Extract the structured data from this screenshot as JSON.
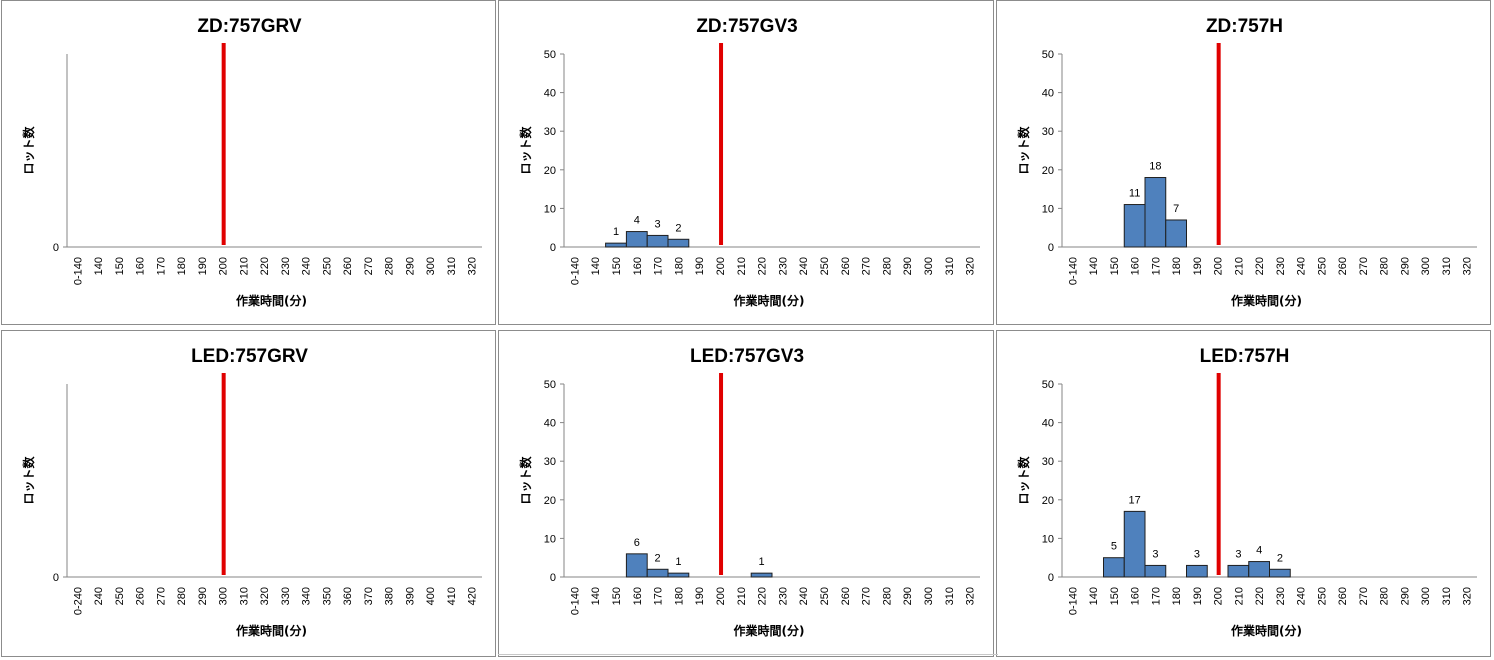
{
  "chart_data": [
    {
      "type": "bar",
      "title": "ZD:757GRV",
      "xlabel": "作業時間(分)",
      "ylabel": "ロット数",
      "categories": [
        "0-140",
        "140",
        "150",
        "160",
        "170",
        "180",
        "190",
        "200",
        "210",
        "220",
        "230",
        "240",
        "250",
        "260",
        "270",
        "280",
        "290",
        "300",
        "310",
        "320"
      ],
      "values": [
        0,
        0,
        0,
        0,
        0,
        0,
        0,
        0,
        0,
        0,
        0,
        0,
        0,
        0,
        0,
        0,
        0,
        0,
        0,
        0
      ],
      "data_labels": [
        null,
        null,
        null,
        null,
        null,
        null,
        null,
        null,
        null,
        null,
        null,
        null,
        null,
        null,
        null,
        null,
        null,
        null,
        null,
        null
      ],
      "yticks": [
        0
      ],
      "ylim": [
        0,
        50
      ],
      "threshold_position": 7.55,
      "bar_color": "#4f81bd",
      "threshold_color": "#e00000"
    },
    {
      "type": "bar",
      "title": "ZD:757GV3",
      "xlabel": "作業時間(分)",
      "ylabel": "ロット数",
      "categories": [
        "0-140",
        "140",
        "150",
        "160",
        "170",
        "180",
        "190",
        "200",
        "210",
        "220",
        "230",
        "240",
        "250",
        "260",
        "270",
        "280",
        "290",
        "300",
        "310",
        "320"
      ],
      "values": [
        0,
        0,
        1,
        4,
        3,
        2,
        0,
        0,
        0,
        0,
        0,
        0,
        0,
        0,
        0,
        0,
        0,
        0,
        0,
        0
      ],
      "data_labels": [
        null,
        null,
        "1",
        "4",
        "3",
        "2",
        null,
        null,
        null,
        null,
        null,
        null,
        null,
        null,
        null,
        null,
        null,
        null,
        null,
        null
      ],
      "yticks": [
        0,
        10,
        20,
        30,
        40,
        50
      ],
      "ylim": [
        0,
        50
      ],
      "threshold_position": 7.55,
      "bar_color": "#4f81bd",
      "threshold_color": "#e00000"
    },
    {
      "type": "bar",
      "title": "ZD:757H",
      "xlabel": "作業時間(分)",
      "ylabel": "ロット数",
      "categories": [
        "0-140",
        "140",
        "150",
        "160",
        "170",
        "180",
        "190",
        "200",
        "210",
        "220",
        "230",
        "240",
        "250",
        "260",
        "270",
        "280",
        "290",
        "300",
        "310",
        "320"
      ],
      "values": [
        0,
        0,
        0,
        11,
        18,
        7,
        0,
        0,
        0,
        0,
        0,
        0,
        0,
        0,
        0,
        0,
        0,
        0,
        0,
        0
      ],
      "data_labels": [
        null,
        null,
        null,
        "11",
        "18",
        "7",
        null,
        null,
        null,
        null,
        null,
        null,
        null,
        null,
        null,
        null,
        null,
        null,
        null,
        null
      ],
      "yticks": [
        0,
        10,
        20,
        30,
        40,
        50
      ],
      "ylim": [
        0,
        50
      ],
      "threshold_position": 7.55,
      "bar_color": "#4f81bd",
      "threshold_color": "#e00000"
    },
    {
      "type": "bar",
      "title": "LED:757GRV",
      "xlabel": "作業時間(分)",
      "ylabel": "ロット数",
      "categories": [
        "0-240",
        "240",
        "250",
        "260",
        "270",
        "280",
        "290",
        "300",
        "310",
        "320",
        "330",
        "340",
        "350",
        "360",
        "370",
        "380",
        "390",
        "400",
        "410",
        "420"
      ],
      "values": [
        0,
        0,
        0,
        0,
        0,
        0,
        0,
        0,
        0,
        0,
        0,
        0,
        0,
        0,
        0,
        0,
        0,
        0,
        0,
        0
      ],
      "data_labels": [
        null,
        null,
        null,
        null,
        null,
        null,
        null,
        null,
        null,
        null,
        null,
        null,
        null,
        null,
        null,
        null,
        null,
        null,
        null,
        null
      ],
      "yticks": [
        0
      ],
      "ylim": [
        0,
        50
      ],
      "threshold_position": 7.55,
      "bar_color": "#4f81bd",
      "threshold_color": "#e00000"
    },
    {
      "type": "bar",
      "title": "LED:757GV3",
      "xlabel": "作業時間(分)",
      "ylabel": "ロット数",
      "categories": [
        "0-140",
        "140",
        "150",
        "160",
        "170",
        "180",
        "190",
        "200",
        "210",
        "220",
        "230",
        "240",
        "250",
        "260",
        "270",
        "280",
        "290",
        "300",
        "310",
        "320"
      ],
      "values": [
        0,
        0,
        0,
        6,
        2,
        1,
        0,
        0,
        0,
        1,
        0,
        0,
        0,
        0,
        0,
        0,
        0,
        0,
        0,
        0
      ],
      "data_labels": [
        null,
        null,
        null,
        "6",
        "2",
        "1",
        null,
        null,
        null,
        "1",
        null,
        null,
        null,
        null,
        null,
        null,
        null,
        null,
        null,
        null
      ],
      "yticks": [
        0,
        10,
        20,
        30,
        40,
        50
      ],
      "ylim": [
        0,
        50
      ],
      "threshold_position": 7.55,
      "bar_color": "#4f81bd",
      "threshold_color": "#e00000"
    },
    {
      "type": "bar",
      "title": "LED:757H",
      "xlabel": "作業時間(分)",
      "ylabel": "ロット数",
      "categories": [
        "0-140",
        "140",
        "150",
        "160",
        "170",
        "180",
        "190",
        "200",
        "210",
        "220",
        "230",
        "240",
        "250",
        "260",
        "270",
        "280",
        "290",
        "300",
        "310",
        "320"
      ],
      "values": [
        0,
        0,
        5,
        17,
        3,
        0,
        3,
        0,
        3,
        4,
        2,
        0,
        0,
        0,
        0,
        0,
        0,
        0,
        0,
        0
      ],
      "data_labels": [
        null,
        null,
        "5",
        "17",
        "3",
        null,
        "3",
        null,
        "3",
        "4",
        "2",
        null,
        null,
        null,
        null,
        null,
        null,
        null,
        null,
        null
      ],
      "yticks": [
        0,
        10,
        20,
        30,
        40,
        50
      ],
      "ylim": [
        0,
        50
      ],
      "threshold_position": 7.55,
      "bar_color": "#4f81bd",
      "threshold_color": "#e00000"
    }
  ]
}
